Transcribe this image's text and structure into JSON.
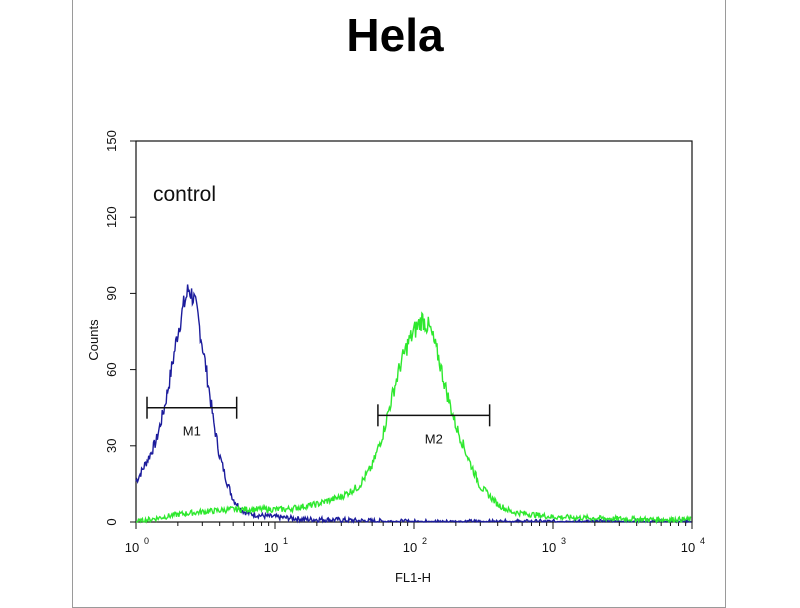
{
  "chart_data": {
    "type": "line",
    "title": "Hela",
    "xlabel": "FL1-H",
    "ylabel": "Counts",
    "xscale": "log",
    "xlim": [
      1,
      10000
    ],
    "ylim": [
      0,
      150
    ],
    "y_ticks": [
      0,
      30,
      60,
      90,
      120,
      150
    ],
    "x_ticks": [
      {
        "value": 1,
        "base": "10",
        "exp": "0"
      },
      {
        "value": 10,
        "base": "10",
        "exp": "1"
      },
      {
        "value": 100,
        "base": "10",
        "exp": "2"
      },
      {
        "value": 1000,
        "base": "10",
        "exp": "3"
      },
      {
        "value": 10000,
        "base": "10",
        "exp": "4"
      }
    ],
    "annotation": "control",
    "grid": false,
    "series": [
      {
        "color": "#1c1c9c",
        "x": [
          1.0,
          1.1,
          1.25,
          1.4,
          1.6,
          1.8,
          2.0,
          2.2,
          2.4,
          2.6,
          2.8,
          3.0,
          3.3,
          3.6,
          4.0,
          4.5,
          5.0,
          5.5,
          6.0,
          7.0,
          8.0,
          10,
          13,
          17,
          22,
          30,
          40,
          60,
          100,
          200,
          500,
          1000,
          3000,
          10000
        ],
        "y": [
          16,
          20,
          26,
          32,
          45,
          60,
          75,
          85,
          92,
          88,
          80,
          70,
          55,
          40,
          26,
          16,
          9,
          6,
          4,
          3,
          2.5,
          2,
          1.5,
          1,
          1,
          0.8,
          0.5,
          0.3,
          0,
          0,
          0,
          0,
          0,
          0
        ]
      },
      {
        "color": "#2ee82e",
        "x": [
          1.0,
          2.0,
          3.0,
          5.0,
          8.0,
          12,
          20,
          30,
          40,
          50,
          60,
          70,
          80,
          90,
          100,
          115,
          130,
          150,
          170,
          200,
          250,
          300,
          400,
          500,
          700,
          1000,
          2000,
          5000,
          10000
        ],
        "y": [
          0,
          3,
          4,
          5,
          5,
          5,
          7,
          10,
          14,
          22,
          35,
          50,
          62,
          70,
          75,
          80,
          76,
          65,
          52,
          38,
          24,
          14,
          7,
          4,
          3,
          2,
          1.5,
          1,
          1
        ]
      }
    ],
    "markers": [
      {
        "label": "M1",
        "from": 1.2,
        "to": 5.3,
        "y": 45
      },
      {
        "label": "M2",
        "from": 55,
        "to": 350,
        "y": 42
      }
    ]
  }
}
